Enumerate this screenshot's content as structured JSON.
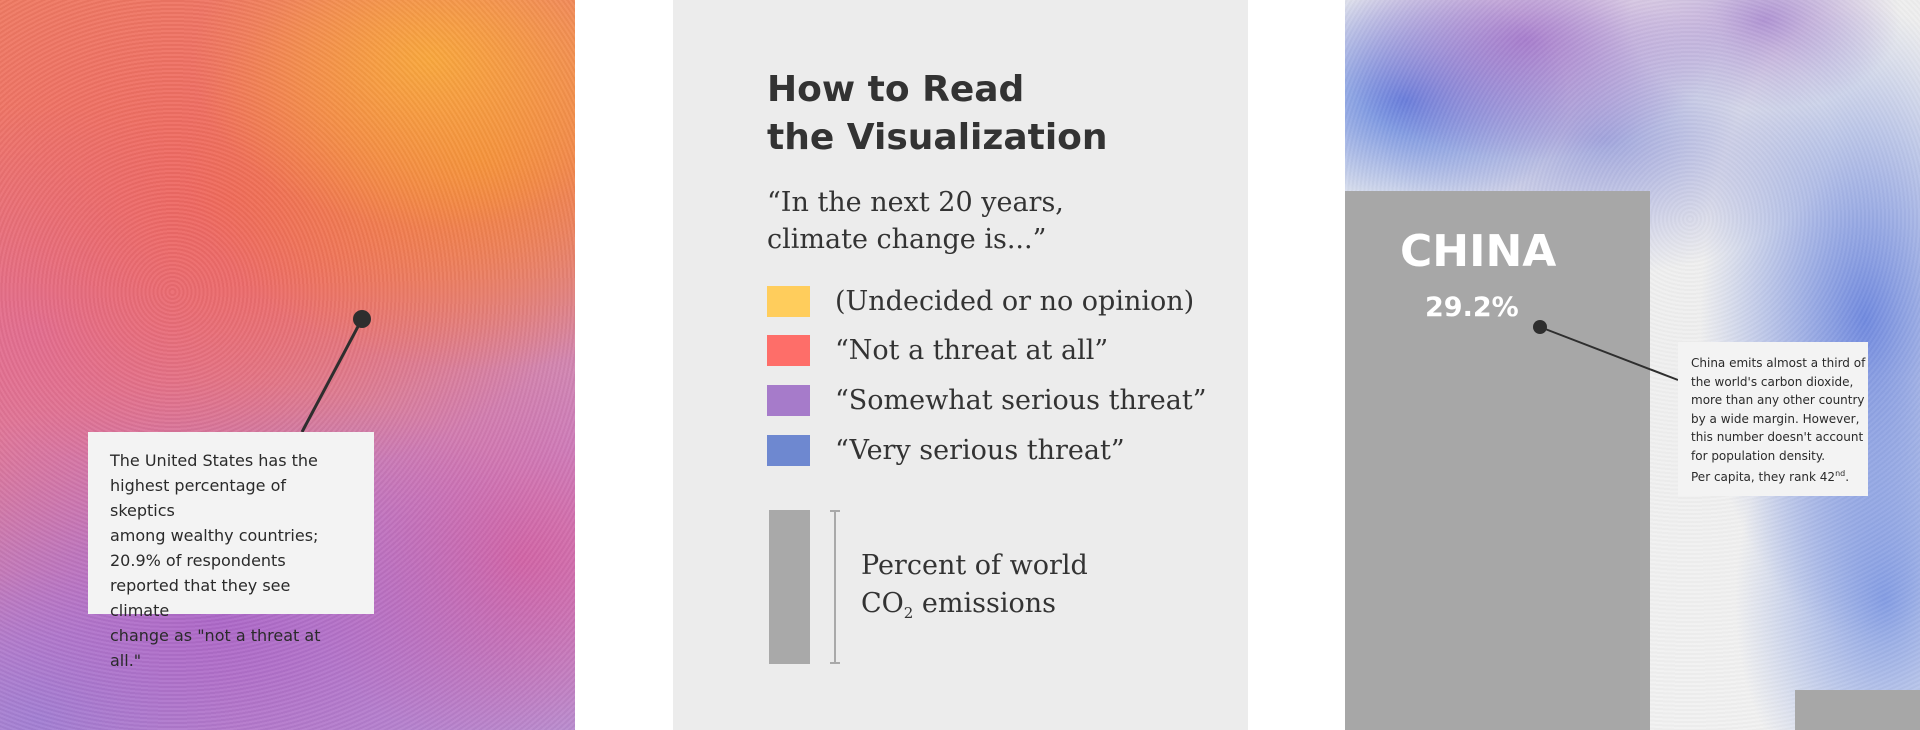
{
  "left_panel": {
    "callout_lines": [
      "The United States has the",
      "highest percentage of skeptics",
      "among wealthy countries;",
      "20.9% of respondents",
      "reported that they see climate",
      "change as \"not a threat at all.\""
    ]
  },
  "legend": {
    "title_lines": [
      "How to Read",
      "the Visualization"
    ],
    "question_lines": [
      "“In the next 20 years,",
      "climate change is...”"
    ],
    "items": [
      {
        "label": "(Undecided or no opinion)",
        "color": "#ffcd5c"
      },
      {
        "label": "“Not a threat at all”",
        "color": "#fe6e69"
      },
      {
        "label": "“Somewhat serious threat”",
        "color": "#a67bca"
      },
      {
        "label": "“Very serious threat”",
        "color": "#6e88d0"
      }
    ],
    "bar_label_line1": "Percent of world",
    "bar_label_co": "CO",
    "bar_label_sub": "2",
    "bar_label_rest": " emissions",
    "bar_color": "#a9a9a9"
  },
  "right_panel": {
    "country_name": "CHINA",
    "country_value": "29.2%",
    "callout_lines": [
      "China emits almost a third of",
      "the world's carbon dioxide,",
      "more than any other country",
      "by a wide margin. However,",
      "this number doesn't account",
      "for population density."
    ],
    "callout_last_prefix": "Per capita, they rank 42",
    "callout_last_sup": "nd",
    "callout_last_suffix": "."
  }
}
